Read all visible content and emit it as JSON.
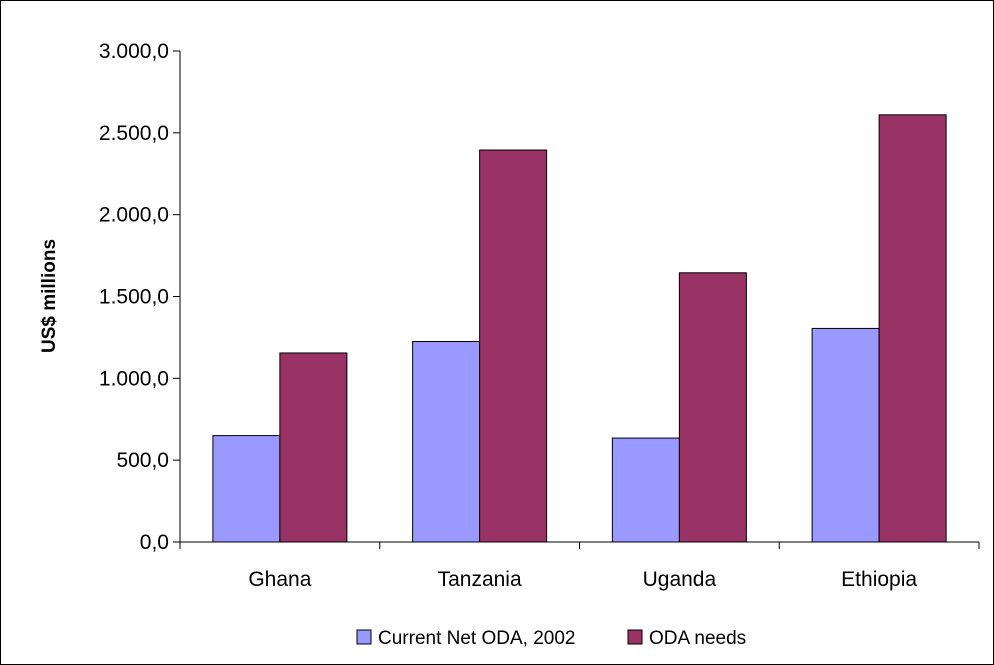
{
  "chart_data": {
    "type": "bar",
    "categories": [
      "Ghana",
      "Tanzania",
      "Uganda",
      "Ethiopia"
    ],
    "series": [
      {
        "name": "Current Net ODA, 2002",
        "values": [
          650,
          1225,
          635,
          1305
        ],
        "color": "#9999ff"
      },
      {
        "name": "ODA needs",
        "values": [
          1155,
          2395,
          1645,
          2610
        ],
        "color": "#993366"
      }
    ],
    "title": "",
    "xlabel": "",
    "ylabel": "US$ millions",
    "ylim": [
      0,
      3000
    ],
    "yticks": [
      0,
      500,
      1000,
      1500,
      2000,
      2500,
      3000
    ],
    "ytick_labels": [
      "0,0",
      "500,0",
      "1.000,0",
      "1.500,0",
      "2.000,0",
      "2.500,0",
      "3.000,0"
    ],
    "grid": false,
    "legend_position": "bottom"
  }
}
